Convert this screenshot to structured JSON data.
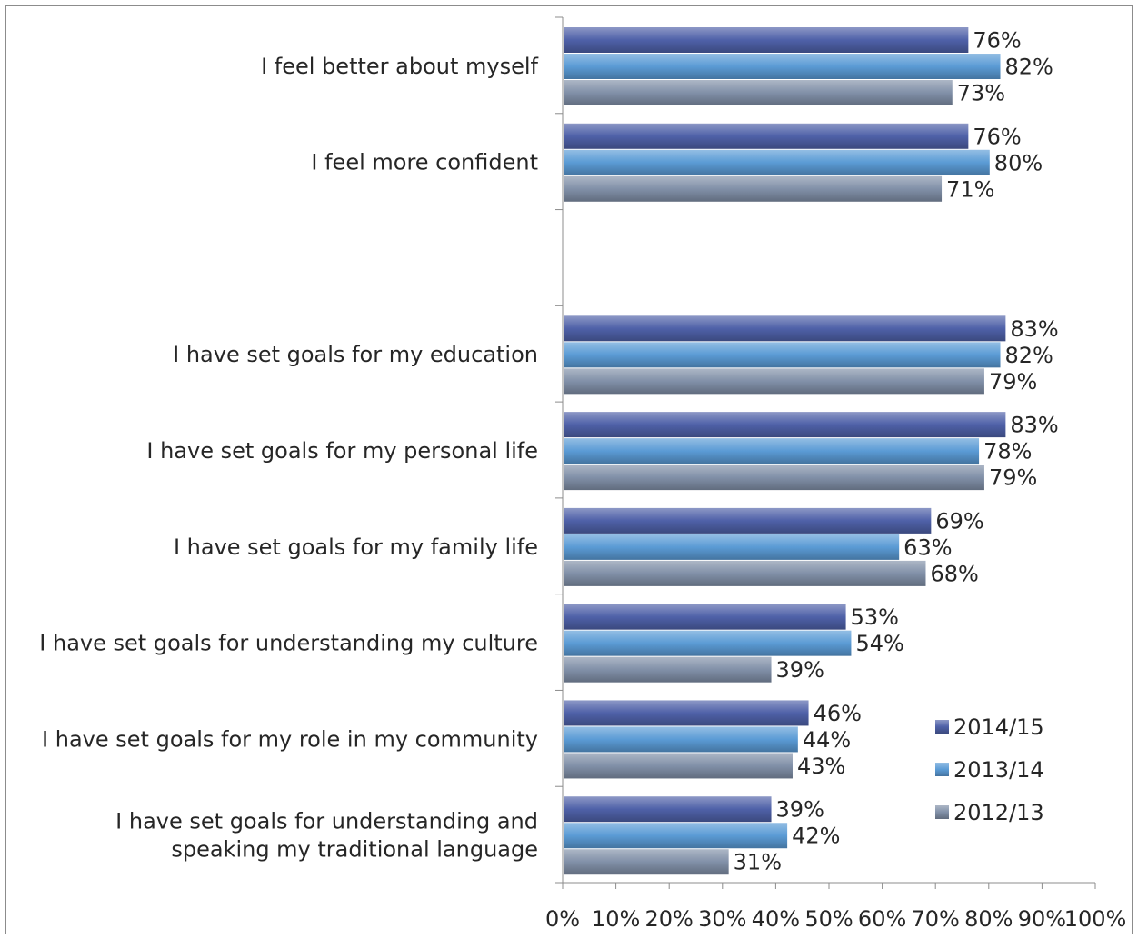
{
  "chart_data": {
    "type": "bar",
    "orientation": "horizontal",
    "title": "",
    "xlabel": "",
    "ylabel": "",
    "xlim": [
      0,
      100
    ],
    "x_tick_labels": [
      "0%",
      "10%",
      "20%",
      "30%",
      "40%",
      "50%",
      "60%",
      "70%",
      "80%",
      "90%",
      "100%"
    ],
    "grid": false,
    "legend_position": "bottom-right",
    "categories": [
      "I feel better about myself",
      "I feel more confident",
      "",
      "I have set goals for my education",
      "I have set goals for my personal life",
      "I have set goals for my family life",
      "I have set goals for understanding my culture",
      "I have set goals for my role in my community",
      "I have set goals for understanding and speaking my traditional language"
    ],
    "category_label_lines": [
      [
        "I feel better about myself"
      ],
      [
        "I feel more confident"
      ],
      [],
      [
        "I have set goals for my education"
      ],
      [
        "I have set goals for my personal life"
      ],
      [
        "I have set goals for my family life"
      ],
      [
        "I have set goals for understanding my culture"
      ],
      [
        "I have set goals for my role in my community"
      ],
      [
        "I have set goals for understanding and",
        "speaking my traditional language"
      ]
    ],
    "series": [
      {
        "name": "2014/15",
        "color": "#4f61a8",
        "values": [
          76,
          76,
          null,
          83,
          83,
          69,
          53,
          46,
          39
        ],
        "labels": [
          "76%",
          "76%",
          "",
          "83%",
          "83%",
          "69%",
          "53%",
          "46%",
          "39%"
        ]
      },
      {
        "name": "2013/14",
        "color": "#5b9bd5",
        "values": [
          82,
          80,
          null,
          82,
          78,
          63,
          54,
          44,
          42
        ],
        "labels": [
          "82%",
          "80%",
          "",
          "82%",
          "78%",
          "63%",
          "54%",
          "44%",
          "42%"
        ]
      },
      {
        "name": "2012/13",
        "color": "#8190a8",
        "values": [
          73,
          71,
          null,
          79,
          79,
          68,
          39,
          43,
          31
        ],
        "labels": [
          "73%",
          "71%",
          "",
          "79%",
          "79%",
          "68%",
          "39%",
          "43%",
          "31%"
        ]
      }
    ]
  }
}
